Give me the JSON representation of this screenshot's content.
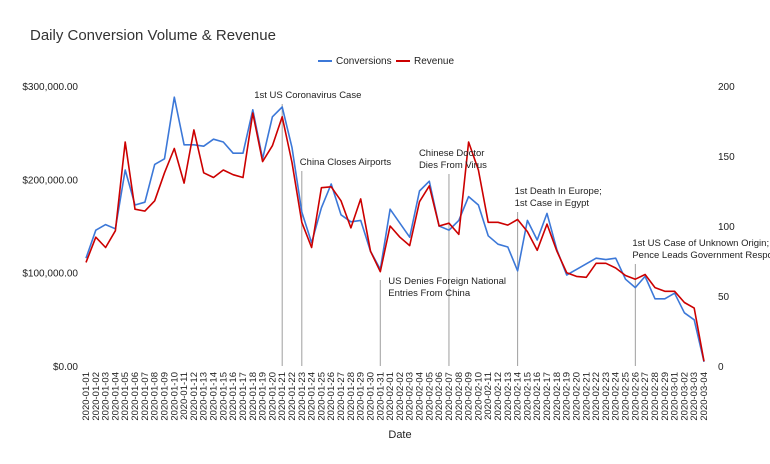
{
  "chart_data": {
    "type": "line",
    "title": "Daily Conversion Volume & Revenue",
    "xlabel": "Date",
    "ylabel_left": "",
    "ylabel_right": "",
    "legend_position": "top-center",
    "grid": false,
    "y_left": {
      "min": 0,
      "max": 300000,
      "ticks": [
        "$0.00",
        "$100,000.00",
        "$200,000.00",
        "$300,000.00"
      ],
      "tick_values": [
        0,
        100000,
        200000,
        300000
      ]
    },
    "y_right": {
      "min": 0,
      "max": 200,
      "ticks": [
        "0",
        "50",
        "100",
        "150",
        "200"
      ],
      "tick_values": [
        0,
        50,
        100,
        150,
        200
      ]
    },
    "x": [
      "2020-01-01",
      "2020-01-02",
      "2020-01-03",
      "2020-01-04",
      "2020-01-05",
      "2020-01-06",
      "2020-01-07",
      "2020-01-08",
      "2020-01-09",
      "2020-01-10",
      "2020-01-11",
      "2020-01-12",
      "2020-01-13",
      "2020-01-14",
      "2020-01-15",
      "2020-01-16",
      "2020-01-17",
      "2020-01-18",
      "2020-01-19",
      "2020-01-20",
      "2020-01-21",
      "2020-01-22",
      "2020-01-23",
      "2020-01-24",
      "2020-01-25",
      "2020-01-26",
      "2020-01-27",
      "2020-01-28",
      "2020-01-29",
      "2020-01-30",
      "2020-01-31",
      "2020-02-01",
      "2020-02-02",
      "2020-02-03",
      "2020-02-04",
      "2020-02-05",
      "2020-02-06",
      "2020-02-07",
      "2020-02-08",
      "2020-02-09",
      "2020-02-10",
      "2020-02-11",
      "2020-02-12",
      "2020-02-13",
      "2020-02-14",
      "2020-02-15",
      "2020-02-16",
      "2020-02-17",
      "2020-02-18",
      "2020-02-19",
      "2020-02-20",
      "2020-02-21",
      "2020-02-22",
      "2020-02-23",
      "2020-02-24",
      "2020-02-25",
      "2020-02-26",
      "2020-02-27",
      "2020-02-28",
      "2020-02-29",
      "2020-03-01",
      "2020-03-02",
      "2020-03-03",
      "2020-03-04"
    ],
    "series": [
      {
        "name": "Conversions",
        "color": "#3c78d8",
        "axis": "right",
        "values": [
          77,
          97,
          101,
          98,
          140,
          115,
          117,
          144,
          148,
          192,
          158,
          158,
          157,
          162,
          160,
          152,
          152,
          183,
          148,
          178,
          185,
          156,
          110,
          88,
          113,
          130,
          108,
          103,
          104,
          82,
          69,
          112,
          102,
          92,
          125,
          132,
          100,
          97,
          104,
          121,
          115,
          93,
          87,
          85,
          68,
          104,
          90,
          109,
          83,
          65,
          69,
          73,
          77,
          76,
          77,
          62,
          56,
          64,
          48,
          48,
          52,
          38,
          33,
          3
        ]
      },
      {
        "name": "Revenue",
        "color": "#cc0000",
        "axis": "left",
        "values": [
          111000,
          138000,
          127000,
          145000,
          240000,
          168000,
          166000,
          177000,
          207000,
          233000,
          196000,
          253000,
          207000,
          202000,
          210000,
          205000,
          202000,
          271000,
          219000,
          236000,
          267000,
          218000,
          154000,
          127000,
          191000,
          192000,
          177000,
          148000,
          179000,
          123000,
          101000,
          150000,
          138000,
          129000,
          176000,
          193000,
          150000,
          153000,
          141000,
          240000,
          210000,
          154000,
          154000,
          151000,
          157000,
          144000,
          124000,
          152000,
          123000,
          100000,
          96000,
          95000,
          110000,
          110000,
          105000,
          97000,
          93000,
          98000,
          84000,
          80000,
          80000,
          68000,
          62000,
          5000
        ]
      }
    ],
    "annotations": [
      {
        "x": "2020-01-21",
        "lines": [
          "1st US Coronavirus Case"
        ]
      },
      {
        "x": "2020-01-23",
        "lines": [
          "China Closes Airports"
        ]
      },
      {
        "x": "2020-01-31",
        "lines": [
          "US Denies Foreign National",
          "Entries From China"
        ]
      },
      {
        "x": "2020-02-07",
        "lines": [
          "Chinese Doctor",
          "Dies From Virus"
        ]
      },
      {
        "x": "2020-02-14",
        "lines": [
          "1st Death In Europe;",
          "1st Case in Egypt"
        ]
      },
      {
        "x": "2020-02-26",
        "lines": [
          "1st US Case of Unknown Origin;",
          "Pence Leads Government Response"
        ]
      }
    ]
  }
}
